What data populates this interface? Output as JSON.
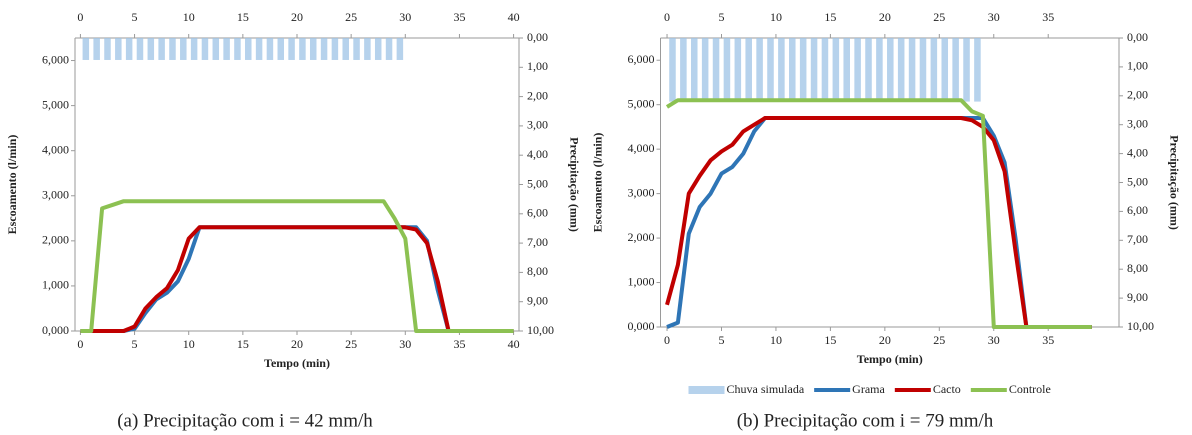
{
  "chart_data": [
    {
      "type": "line",
      "caption": "(a) Precipitação com i = 42 mm/h",
      "x_label": "Tempo (min)",
      "y_label": "Escoamento (l/min)",
      "y2_label": "Precipitação (mm)",
      "xlim": [
        -0.5,
        40.5
      ],
      "xticks": [
        0,
        5,
        10,
        15,
        20,
        25,
        30,
        35,
        40
      ],
      "ylim": [
        0,
        6500
      ],
      "yticks": [
        {
          "value": 0,
          "label": "0,000"
        },
        {
          "value": 1000,
          "label": "1,000"
        },
        {
          "value": 2000,
          "label": "2,000"
        },
        {
          "value": 3000,
          "label": "3,000"
        },
        {
          "value": 4000,
          "label": "4,000"
        },
        {
          "value": 5000,
          "label": "5,000"
        },
        {
          "value": 6000,
          "label": "6,000"
        }
      ],
      "y2lim": [
        0,
        10
      ],
      "y2_inverted": true,
      "y2ticks": [
        {
          "value": 0,
          "label": "0,00"
        },
        {
          "value": 1,
          "label": "1,00"
        },
        {
          "value": 2,
          "label": "2,00"
        },
        {
          "value": 3,
          "label": "3,00"
        },
        {
          "value": 4,
          "label": "4,00"
        },
        {
          "value": 5,
          "label": "5,00"
        },
        {
          "value": 6,
          "label": "6,00"
        },
        {
          "value": 7,
          "label": "7,00"
        },
        {
          "value": 8,
          "label": "8,00"
        },
        {
          "value": 9,
          "label": "9,00"
        },
        {
          "value": 10,
          "label": "10,00"
        }
      ],
      "x": [
        0,
        1,
        2,
        3,
        4,
        5,
        6,
        7,
        8,
        9,
        10,
        11,
        12,
        13,
        14,
        15,
        16,
        17,
        18,
        19,
        20,
        21,
        22,
        23,
        24,
        25,
        26,
        27,
        28,
        29,
        30,
        31,
        32,
        33,
        34,
        35,
        36,
        37,
        38,
        39,
        40
      ],
      "series": [
        {
          "type": "bar",
          "axis": "y2",
          "color": "#9dc3e6",
          "values": [
            0.75,
            0.75,
            0.75,
            0.75,
            0.75,
            0.75,
            0.75,
            0.75,
            0.75,
            0.75,
            0.75,
            0.75,
            0.75,
            0.75,
            0.75,
            0.75,
            0.75,
            0.75,
            0.75,
            0.75,
            0.75,
            0.75,
            0.75,
            0.75,
            0.75,
            0.75,
            0.75,
            0.75,
            0.75,
            0.75,
            null,
            null,
            null,
            null,
            null,
            null,
            null,
            null,
            null,
            null,
            null
          ]
        },
        {
          "color": "#2e75b6",
          "values": [
            0,
            0,
            0,
            0,
            0,
            50,
            400,
            700,
            850,
            1100,
            1600,
            2300,
            2300,
            2300,
            2300,
            2300,
            2300,
            2300,
            2300,
            2300,
            2300,
            2300,
            2300,
            2300,
            2300,
            2300,
            2300,
            2300,
            2300,
            2300,
            2300,
            2300,
            2000,
            900,
            0,
            0,
            0,
            0,
            0,
            0,
            0
          ]
        },
        {
          "color": "#c00000",
          "values": [
            0,
            0,
            0,
            0,
            0,
            100,
            500,
            750,
            950,
            1350,
            2050,
            2300,
            2300,
            2300,
            2300,
            2300,
            2300,
            2300,
            2300,
            2300,
            2300,
            2300,
            2300,
            2300,
            2300,
            2300,
            2300,
            2300,
            2300,
            2300,
            2300,
            2250,
            1950,
            1100,
            0,
            0,
            0,
            0,
            0,
            0,
            0
          ]
        },
        {
          "color": "#8cc152",
          "values": [
            0,
            0,
            2720,
            2800,
            2880,
            2880,
            2880,
            2880,
            2880,
            2880,
            2880,
            2880,
            2880,
            2880,
            2880,
            2880,
            2880,
            2880,
            2880,
            2880,
            2880,
            2880,
            2880,
            2880,
            2880,
            2880,
            2880,
            2880,
            2880,
            2500,
            2050,
            0,
            0,
            0,
            0,
            0,
            0,
            0,
            0,
            0,
            0
          ]
        }
      ]
    },
    {
      "type": "line",
      "caption": "(b) Precipitação com i = 79 mm/h",
      "x_label": "Tempo (min)",
      "y_label": "Escoamento (l/min)",
      "y2_label": "Precipitação (mm)",
      "xlim": [
        -0.6,
        41.5
      ],
      "xticks": [
        0,
        5,
        10,
        15,
        20,
        25,
        30,
        35
      ],
      "ylim": [
        0,
        6500
      ],
      "yticks": [
        {
          "value": 0,
          "label": "0,000"
        },
        {
          "value": 1000,
          "label": "1,000"
        },
        {
          "value": 2000,
          "label": "2,000"
        },
        {
          "value": 3000,
          "label": "3,000"
        },
        {
          "value": 4000,
          "label": "4,000"
        },
        {
          "value": 5000,
          "label": "5,000"
        },
        {
          "value": 6000,
          "label": "6,000"
        }
      ],
      "y2lim": [
        0,
        10
      ],
      "y2_inverted": true,
      "y2ticks": [
        {
          "value": 0,
          "label": "0,00"
        },
        {
          "value": 1,
          "label": "1,00"
        },
        {
          "value": 2,
          "label": "2,00"
        },
        {
          "value": 3,
          "label": "3,00"
        },
        {
          "value": 4,
          "label": "4,00"
        },
        {
          "value": 5,
          "label": "5,00"
        },
        {
          "value": 6,
          "label": "6,00"
        },
        {
          "value": 7,
          "label": "7,00"
        },
        {
          "value": 8,
          "label": "8,00"
        },
        {
          "value": 9,
          "label": "9,00"
        },
        {
          "value": 10,
          "label": "10,00"
        }
      ],
      "legend": "bottom",
      "x": [
        0,
        1,
        2,
        3,
        4,
        5,
        6,
        7,
        8,
        9,
        10,
        11,
        12,
        13,
        14,
        15,
        16,
        17,
        18,
        19,
        20,
        21,
        22,
        23,
        24,
        25,
        26,
        27,
        28,
        29,
        30,
        31,
        32,
        33,
        34,
        35,
        36,
        37,
        38,
        39
      ],
      "series": [
        {
          "name": "Chuva simulada",
          "type": "bar",
          "axis": "y2",
          "color": "#9dc3e6",
          "values": [
            2.2,
            2.2,
            2.2,
            2.2,
            2.2,
            2.2,
            2.2,
            2.2,
            2.2,
            2.2,
            2.2,
            2.2,
            2.2,
            2.2,
            2.2,
            2.2,
            2.2,
            2.2,
            2.2,
            2.2,
            2.2,
            2.2,
            2.2,
            2.2,
            2.2,
            2.2,
            2.2,
            2.2,
            2.2,
            null,
            null,
            null,
            null,
            null,
            null,
            null,
            null,
            null,
            null,
            null
          ]
        },
        {
          "name": "Grama",
          "color": "#2e75b6",
          "values": [
            0,
            100,
            2100,
            2700,
            3000,
            3450,
            3600,
            3900,
            4400,
            4700,
            4700,
            4700,
            4700,
            4700,
            4700,
            4700,
            4700,
            4700,
            4700,
            4700,
            4700,
            4700,
            4700,
            4700,
            4700,
            4700,
            4700,
            4700,
            4700,
            4700,
            4300,
            3700,
            2000,
            0,
            0,
            0,
            0,
            0,
            0,
            0
          ]
        },
        {
          "name": "Cacto",
          "color": "#c00000",
          "values": [
            500,
            1400,
            3000,
            3400,
            3750,
            3950,
            4100,
            4400,
            4550,
            4700,
            4700,
            4700,
            4700,
            4700,
            4700,
            4700,
            4700,
            4700,
            4700,
            4700,
            4700,
            4700,
            4700,
            4700,
            4700,
            4700,
            4700,
            4700,
            4650,
            4500,
            4200,
            3500,
            1700,
            0,
            0,
            0,
            0,
            0,
            0,
            0
          ]
        },
        {
          "name": "Controle",
          "color": "#8cc152",
          "values": [
            4950,
            5100,
            5100,
            5100,
            5100,
            5100,
            5100,
            5100,
            5100,
            5100,
            5100,
            5100,
            5100,
            5100,
            5100,
            5100,
            5100,
            5100,
            5100,
            5100,
            5100,
            5100,
            5100,
            5100,
            5100,
            5100,
            5100,
            5100,
            4850,
            4750,
            0,
            0,
            0,
            0,
            0,
            0,
            0,
            0,
            0,
            0
          ]
        }
      ]
    }
  ]
}
